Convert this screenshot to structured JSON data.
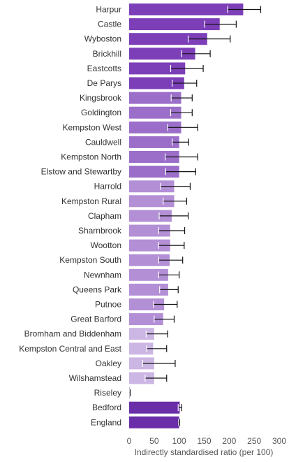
{
  "chart_data": {
    "type": "bar",
    "orientation": "horizontal",
    "title": "",
    "xlabel": "Indirectly standardised ratio (per 100)",
    "ylabel": "",
    "xlim": [
      0,
      300
    ],
    "x_ticks": [
      0,
      50,
      100,
      150,
      200,
      250,
      300
    ],
    "grid": false,
    "legend": "none",
    "error_bars": true,
    "categories": [
      "Harpur",
      "Castle",
      "Wyboston",
      "Brickhill",
      "Eastcotts",
      "De Parys",
      "Kingsbrook",
      "Goldington",
      "Kempston West",
      "Cauldwell",
      "Kempston North",
      "Elstow and Stewartby",
      "Harrold",
      "Kempston Rural",
      "Clapham",
      "Sharnbrook",
      "Wootton",
      "Kempston South",
      "Newnham",
      "Queens Park",
      "Putnoe",
      "Great Barford",
      "Bromham and Biddenham",
      "Kempston Central and East",
      "Oakley",
      "Wilshamstead",
      "Riseley",
      "Bedford",
      "England"
    ],
    "values": [
      228,
      181,
      156,
      132,
      112,
      110,
      104,
      104,
      104,
      100,
      100,
      100,
      90,
      90,
      85,
      82,
      82,
      81,
      78,
      78,
      70,
      68,
      50,
      48,
      50,
      50,
      1,
      101,
      100
    ],
    "ci_lower": [
      197,
      151,
      118,
      105,
      83,
      86,
      84,
      83,
      77,
      86,
      72,
      73,
      63,
      68,
      60,
      59,
      59,
      59,
      59,
      61,
      49,
      50,
      34,
      35,
      27,
      32,
      0,
      98,
      99
    ],
    "ci_upper": [
      263,
      214,
      202,
      162,
      148,
      135,
      126,
      126,
      137,
      119,
      137,
      133,
      122,
      115,
      118,
      111,
      110,
      107,
      100,
      98,
      96,
      90,
      77,
      75,
      92,
      75,
      2,
      105,
      101
    ],
    "colors": {
      "highest": "#7d3fb8",
      "high": "#9b6fc9",
      "middle": "#b38fd6",
      "low": "#ccb6e4",
      "benchmark": "#6a2ea8"
    },
    "bar_colors": [
      "#7d3fb8",
      "#7d3fb8",
      "#7d3fb8",
      "#7d3fb8",
      "#7d3fb8",
      "#7d3fb8",
      "#9b6fc9",
      "#9b6fc9",
      "#9b6fc9",
      "#9b6fc9",
      "#9b6fc9",
      "#9b6fc9",
      "#b38fd6",
      "#b38fd6",
      "#b38fd6",
      "#b38fd6",
      "#b38fd6",
      "#b38fd6",
      "#b38fd6",
      "#b38fd6",
      "#b38fd6",
      "#b38fd6",
      "#ccb6e4",
      "#ccb6e4",
      "#ccb6e4",
      "#ccb6e4",
      "#ccb6e4",
      "#6a2ea8",
      "#6a2ea8"
    ]
  }
}
